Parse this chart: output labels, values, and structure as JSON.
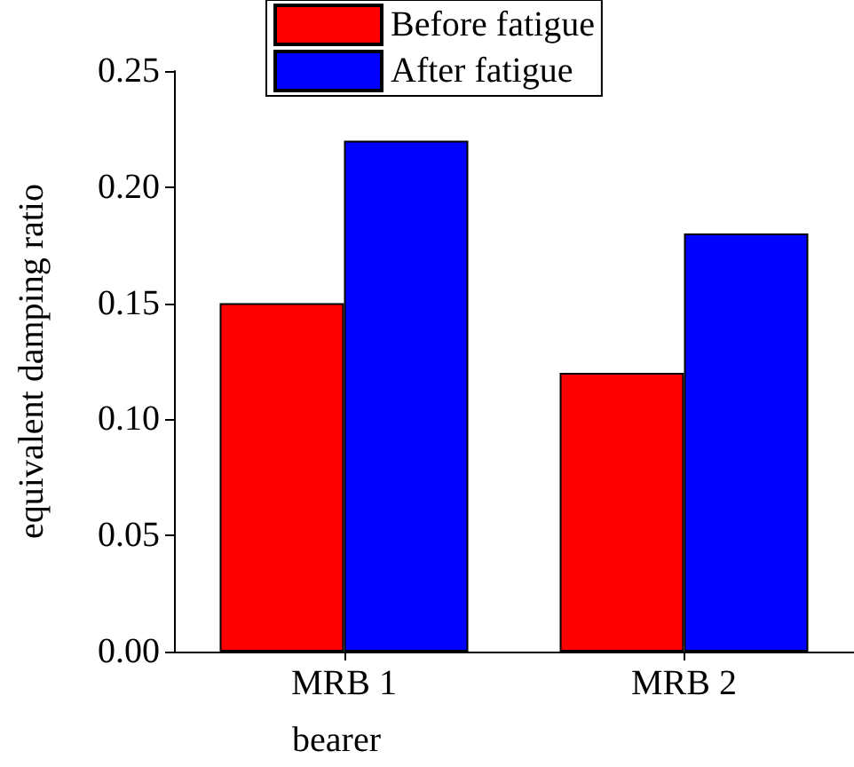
{
  "chart_data": {
    "type": "bar",
    "xlabel": "bearer",
    "ylabel": "equivalent damping ratio",
    "categories": [
      "MRB 1",
      "MRB 2"
    ],
    "series": [
      {
        "name": "Before fatigue",
        "color": "#ff0000",
        "values": [
          0.15,
          0.12
        ]
      },
      {
        "name": "After fatigue",
        "color": "#0000ff",
        "values": [
          0.22,
          0.18
        ]
      }
    ],
    "ylim": [
      0,
      0.25
    ],
    "yticks": [
      {
        "value": 0,
        "label": "0.00"
      },
      0.05,
      {
        "value": 0.1,
        "label": "0.10"
      },
      0.15,
      {
        "value": 0.2,
        "label": "0.20"
      },
      0.25
    ],
    "grid": false,
    "legend": "top"
  }
}
